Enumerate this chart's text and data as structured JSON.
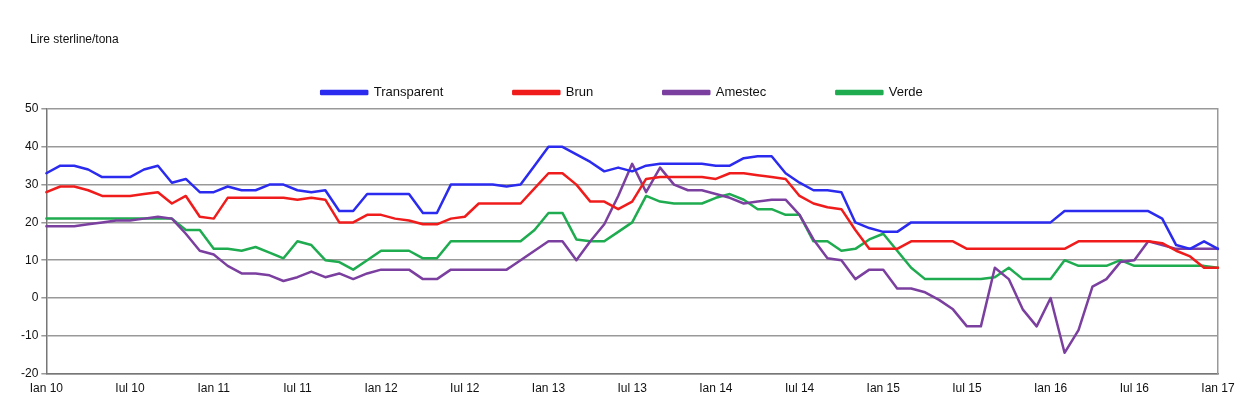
{
  "chart_data": {
    "type": "line",
    "ylabel": "Lire sterline/tona",
    "categories": [
      "Ian 10",
      null,
      null,
      null,
      null,
      null,
      "Iul 10",
      null,
      null,
      null,
      null,
      null,
      "Ian 11",
      null,
      null,
      null,
      null,
      null,
      "Iul 11",
      null,
      null,
      null,
      null,
      null,
      "Ian 12",
      null,
      null,
      null,
      null,
      null,
      "Iul 12",
      null,
      null,
      null,
      null,
      null,
      "Ian 13",
      null,
      null,
      null,
      null,
      null,
      "Iul 13",
      null,
      null,
      null,
      null,
      null,
      "Ian 14",
      null,
      null,
      null,
      null,
      null,
      "Iul 14",
      null,
      null,
      null,
      null,
      null,
      "Ian 15",
      null,
      null,
      null,
      null,
      null,
      "Iul 15",
      null,
      null,
      null,
      null,
      null,
      "Ian 16",
      null,
      null,
      null,
      null,
      null,
      "Iul 16",
      null,
      null,
      null,
      null,
      null,
      "Ian 17"
    ],
    "series": [
      {
        "name": "Transparent",
        "color": "#2b2bf0",
        "values": [
          33,
          35,
          35,
          34,
          32,
          32,
          32,
          34,
          35,
          30.5,
          31.5,
          28,
          28,
          29.5,
          28.5,
          28.5,
          30,
          30,
          28.5,
          28,
          28.5,
          23,
          23,
          27.5,
          27.5,
          27.5,
          27.5,
          22.5,
          22.5,
          30,
          30,
          30,
          30,
          29.5,
          30,
          35,
          40,
          40,
          38,
          36,
          33.5,
          34.5,
          33.5,
          35,
          35.5,
          35.5,
          35.5,
          35.5,
          35,
          35,
          37,
          37.5,
          37.5,
          33,
          30.5,
          28.5,
          28.5,
          28,
          20,
          18.5,
          17.5,
          17.5,
          20,
          20,
          20,
          20,
          20,
          20,
          20,
          20,
          20,
          20,
          20,
          23,
          23,
          23,
          23,
          23,
          23,
          23,
          21,
          14,
          13,
          15,
          13
        ]
      },
      {
        "name": "Brun",
        "color": "#f01c1c",
        "values": [
          28,
          29.5,
          29.5,
          28.5,
          27,
          27,
          27,
          27.5,
          28,
          25,
          27,
          21.5,
          21,
          26.5,
          26.5,
          26.5,
          26.5,
          26.5,
          26,
          26.5,
          26,
          20,
          20,
          22,
          22,
          21,
          20.5,
          19.5,
          19.5,
          21,
          21.5,
          25,
          25,
          25,
          25,
          29,
          33,
          33,
          30,
          25.5,
          25.5,
          23.5,
          25.5,
          31.5,
          32,
          32,
          32,
          32,
          31.5,
          33,
          33,
          32.5,
          32,
          31.5,
          27,
          25,
          24,
          23.5,
          18,
          13,
          13,
          13,
          15,
          15,
          15,
          15,
          13,
          13,
          13,
          13,
          13,
          13,
          13,
          13,
          15,
          15,
          15,
          15,
          15,
          15,
          14.5,
          12.5,
          11,
          8,
          8
        ]
      },
      {
        "name": "Amestec",
        "color": "#7b3fa0",
        "values": [
          19,
          19,
          19,
          19.5,
          20,
          20.5,
          20.5,
          21,
          21.5,
          21,
          17,
          12.5,
          11.5,
          8.5,
          6.5,
          6.5,
          6,
          4.5,
          5.5,
          7,
          5.5,
          6.5,
          5,
          6.5,
          7.5,
          7.5,
          7.5,
          5,
          5,
          7.5,
          7.5,
          7.5,
          7.5,
          7.5,
          10,
          12.5,
          15,
          15,
          10,
          15,
          19.5,
          27,
          35.5,
          28,
          34.5,
          30,
          28.5,
          28.5,
          27.5,
          26.5,
          25,
          25.5,
          26,
          26,
          22,
          15.5,
          10.5,
          10,
          5,
          7.5,
          7.5,
          2.5,
          2.5,
          1.5,
          -0.5,
          -3,
          -7.5,
          -7.5,
          8,
          5,
          -3,
          -7.5,
          0,
          -14.5,
          -8.5,
          3,
          5,
          9.5,
          10,
          15,
          14,
          13,
          13,
          13,
          13
        ]
      },
      {
        "name": "Verde",
        "color": "#1fab4f",
        "values": [
          21,
          21,
          21,
          21,
          21,
          21,
          21,
          21,
          21,
          21,
          18,
          18,
          13,
          13,
          12.5,
          13.5,
          12,
          10.5,
          15,
          14,
          10,
          9.5,
          7.5,
          10,
          12.5,
          12.5,
          12.5,
          10.5,
          10.5,
          15,
          15,
          15,
          15,
          15,
          15,
          18,
          22.5,
          22.5,
          15.5,
          15,
          15,
          17.5,
          20,
          27,
          25.5,
          25,
          25,
          25,
          26.5,
          27.5,
          26,
          23.5,
          23.5,
          22,
          22,
          15,
          15,
          12.5,
          13,
          15.5,
          17,
          12.5,
          8,
          5,
          5,
          5,
          5,
          5,
          5.5,
          8,
          5,
          5,
          5,
          10,
          8.5,
          8.5,
          8.5,
          10,
          8.5,
          8.5,
          8.5,
          8.5,
          8.5,
          8.5,
          8
        ]
      }
    ],
    "ylim": [
      -20,
      50
    ],
    "yticks": [
      -20,
      -10,
      0,
      10,
      20,
      30,
      40,
      50
    ],
    "grid": "y",
    "legend": "top",
    "marker": "none",
    "line_style": "solid"
  }
}
